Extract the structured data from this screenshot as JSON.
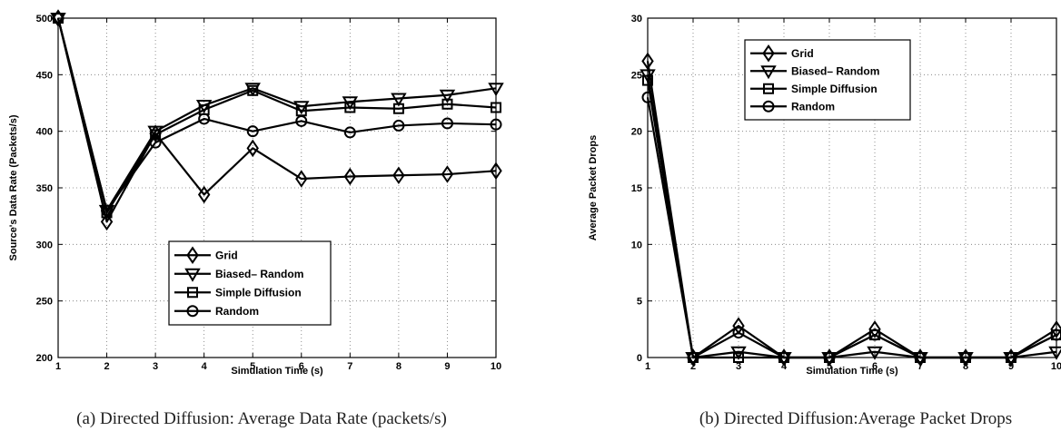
{
  "chart_data": [
    {
      "type": "line",
      "caption": "(a)  Directed Diffusion: Average Data Rate (packets/s)",
      "xlabel": "Simulation Time (s)",
      "ylabel": "Source's Data Rate (Packets/s)",
      "xlim": [
        1,
        10
      ],
      "ylim": [
        200,
        500
      ],
      "xticks": [
        1,
        2,
        3,
        4,
        5,
        6,
        7,
        8,
        9,
        10
      ],
      "yticks": [
        200,
        250,
        300,
        350,
        400,
        450,
        500
      ],
      "grid": true,
      "legend_position": "lower-center",
      "x": [
        1,
        2,
        3,
        4,
        5,
        6,
        7,
        8,
        9,
        10
      ],
      "series": [
        {
          "name": "Grid",
          "marker": "diamond",
          "values": [
            500,
            320,
            398,
            344,
            385,
            358,
            360,
            361,
            362,
            365
          ]
        },
        {
          "name": "Biased– Random",
          "marker": "triangle-down",
          "values": [
            500,
            330,
            400,
            423,
            438,
            422,
            426,
            429,
            432,
            438
          ]
        },
        {
          "name": "Simple Diffusion",
          "marker": "square",
          "values": [
            500,
            328,
            397,
            419,
            436,
            418,
            421,
            420,
            424,
            421
          ]
        },
        {
          "name": "Random",
          "marker": "circle",
          "values": [
            500,
            330,
            390,
            411,
            400,
            409,
            399,
            405,
            407,
            406
          ]
        }
      ]
    },
    {
      "type": "line",
      "caption": "(b)  Directed Diffusion:Average Packet Drops",
      "xlabel": "Simulation Time (s)",
      "ylabel": "Average Packet Drops",
      "xlim": [
        1,
        10
      ],
      "ylim": [
        0,
        30
      ],
      "xticks": [
        1,
        2,
        3,
        4,
        5,
        6,
        7,
        8,
        9,
        10
      ],
      "yticks": [
        0,
        5,
        10,
        15,
        20,
        25,
        30
      ],
      "grid": true,
      "legend_position": "top-center",
      "x": [
        1,
        2,
        3,
        4,
        5,
        6,
        7,
        8,
        9,
        10
      ],
      "series": [
        {
          "name": "Grid",
          "marker": "diamond",
          "values": [
            26.2,
            0,
            2.8,
            0,
            0,
            2.5,
            0,
            0,
            0,
            2.5
          ]
        },
        {
          "name": "Biased– Random",
          "marker": "triangle-down",
          "values": [
            25,
            0,
            0.5,
            0,
            0,
            0.5,
            0,
            0,
            0,
            0.5
          ]
        },
        {
          "name": "Simple Diffusion",
          "marker": "square",
          "values": [
            24.5,
            0,
            0,
            0,
            0,
            2,
            0,
            0,
            0,
            2
          ]
        },
        {
          "name": "Random",
          "marker": "circle",
          "values": [
            23,
            0,
            2.2,
            0,
            0,
            2,
            0,
            0,
            0,
            2
          ]
        }
      ]
    }
  ]
}
